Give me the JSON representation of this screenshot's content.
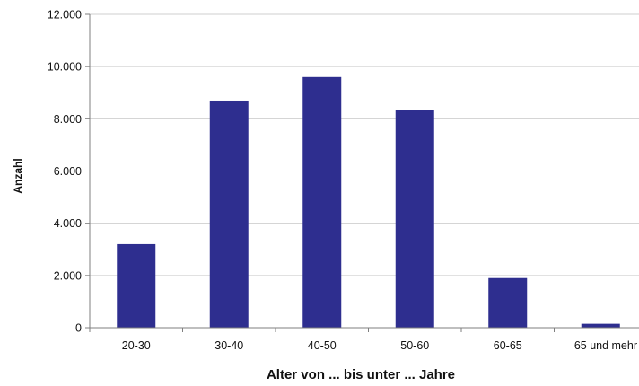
{
  "chart_data": {
    "type": "bar",
    "title": "",
    "xlabel": "Alter von ... bis unter ... Jahre",
    "ylabel": "Anzahl",
    "categories": [
      "20-30",
      "30-40",
      "40-50",
      "50-60",
      "60-65",
      "65 und mehr"
    ],
    "values": [
      3200,
      8700,
      9600,
      8350,
      1900,
      150
    ],
    "ylim": [
      0,
      12000
    ],
    "yticks": [
      0,
      2000,
      4000,
      6000,
      8000,
      10000,
      12000
    ],
    "ytick_labels": [
      "0",
      "2.000",
      "4.000",
      "6.000",
      "8.000",
      "10.000",
      "12.000"
    ],
    "grid": true,
    "legend": "none",
    "colors": {
      "bar": "#2e2e8f",
      "grid": "#cfcfcf",
      "axis": "#7f7f7f",
      "text": "#111111"
    }
  }
}
